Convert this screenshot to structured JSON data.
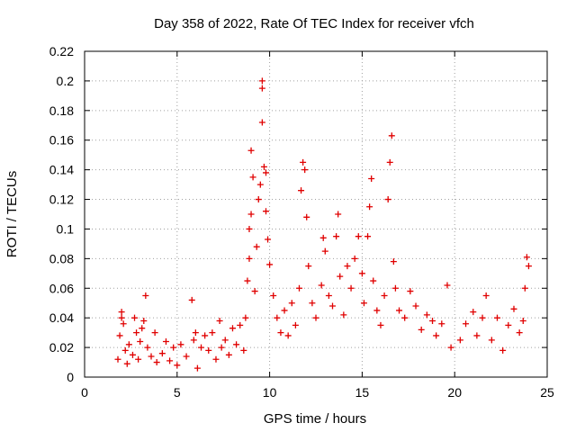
{
  "chart_data": {
    "type": "scatter",
    "title": "Day 358 of 2022, Rate Of TEC Index for receiver vfch",
    "xlabel": "GPS time / hours",
    "ylabel": "ROTI / TECUs",
    "xlim": [
      0,
      25
    ],
    "ylim": [
      0,
      0.22
    ],
    "xticks": [
      "0",
      "5",
      "10",
      "15",
      "20",
      "25"
    ],
    "yticks": [
      "0",
      "0.02",
      "0.04",
      "0.06",
      "0.08",
      "0.1",
      "0.12",
      "0.14",
      "0.16",
      "0.18",
      "0.2",
      "0.22"
    ],
    "grid": true,
    "marker": "plus",
    "color": "#e00000",
    "series": [
      {
        "points": [
          [
            1.8,
            0.012
          ],
          [
            1.9,
            0.028
          ],
          [
            2.0,
            0.044
          ],
          [
            2.0,
            0.04
          ],
          [
            2.1,
            0.036
          ],
          [
            2.2,
            0.018
          ],
          [
            2.3,
            0.009
          ],
          [
            2.4,
            0.022
          ],
          [
            2.6,
            0.015
          ],
          [
            2.7,
            0.04
          ],
          [
            2.8,
            0.03
          ],
          [
            2.9,
            0.012
          ],
          [
            3.0,
            0.024
          ],
          [
            3.1,
            0.033
          ],
          [
            3.2,
            0.038
          ],
          [
            3.3,
            0.055
          ],
          [
            3.4,
            0.02
          ],
          [
            3.6,
            0.014
          ],
          [
            3.8,
            0.03
          ],
          [
            3.9,
            0.01
          ],
          [
            4.2,
            0.016
          ],
          [
            4.4,
            0.024
          ],
          [
            4.6,
            0.011
          ],
          [
            4.8,
            0.02
          ],
          [
            5.0,
            0.008
          ],
          [
            5.2,
            0.022
          ],
          [
            5.5,
            0.014
          ],
          [
            5.8,
            0.052
          ],
          [
            5.9,
            0.025
          ],
          [
            6.0,
            0.03
          ],
          [
            6.1,
            0.006
          ],
          [
            6.3,
            0.02
          ],
          [
            6.5,
            0.028
          ],
          [
            6.7,
            0.018
          ],
          [
            6.9,
            0.03
          ],
          [
            7.1,
            0.012
          ],
          [
            7.3,
            0.038
          ],
          [
            7.4,
            0.02
          ],
          [
            7.6,
            0.025
          ],
          [
            7.8,
            0.015
          ],
          [
            8.0,
            0.033
          ],
          [
            8.2,
            0.022
          ],
          [
            8.4,
            0.035
          ],
          [
            8.6,
            0.018
          ],
          [
            8.7,
            0.04
          ],
          [
            8.8,
            0.065
          ],
          [
            8.9,
            0.08
          ],
          [
            8.9,
            0.1
          ],
          [
            9.0,
            0.11
          ],
          [
            9.0,
            0.153
          ],
          [
            9.1,
            0.135
          ],
          [
            9.2,
            0.058
          ],
          [
            9.3,
            0.088
          ],
          [
            9.4,
            0.12
          ],
          [
            9.5,
            0.13
          ],
          [
            9.6,
            0.172
          ],
          [
            9.6,
            0.2
          ],
          [
            9.6,
            0.195
          ],
          [
            9.7,
            0.142
          ],
          [
            9.8,
            0.138
          ],
          [
            9.8,
            0.112
          ],
          [
            9.9,
            0.093
          ],
          [
            10.0,
            0.076
          ],
          [
            10.2,
            0.055
          ],
          [
            10.4,
            0.04
          ],
          [
            10.6,
            0.03
          ],
          [
            10.8,
            0.045
          ],
          [
            11.0,
            0.028
          ],
          [
            11.2,
            0.05
          ],
          [
            11.4,
            0.035
          ],
          [
            11.6,
            0.06
          ],
          [
            11.7,
            0.126
          ],
          [
            11.8,
            0.145
          ],
          [
            11.9,
            0.14
          ],
          [
            12.0,
            0.108
          ],
          [
            12.1,
            0.075
          ],
          [
            12.3,
            0.05
          ],
          [
            12.5,
            0.04
          ],
          [
            12.8,
            0.062
          ],
          [
            12.9,
            0.094
          ],
          [
            13.0,
            0.085
          ],
          [
            13.2,
            0.055
          ],
          [
            13.4,
            0.048
          ],
          [
            13.6,
            0.095
          ],
          [
            13.7,
            0.11
          ],
          [
            13.8,
            0.068
          ],
          [
            14.0,
            0.042
          ],
          [
            14.2,
            0.075
          ],
          [
            14.4,
            0.06
          ],
          [
            14.6,
            0.08
          ],
          [
            14.8,
            0.095
          ],
          [
            15.0,
            0.07
          ],
          [
            15.1,
            0.05
          ],
          [
            15.3,
            0.095
          ],
          [
            15.4,
            0.115
          ],
          [
            15.5,
            0.134
          ],
          [
            15.6,
            0.065
          ],
          [
            15.8,
            0.045
          ],
          [
            16.0,
            0.035
          ],
          [
            16.2,
            0.055
          ],
          [
            16.4,
            0.12
          ],
          [
            16.5,
            0.145
          ],
          [
            16.6,
            0.163
          ],
          [
            16.7,
            0.078
          ],
          [
            16.8,
            0.06
          ],
          [
            17.0,
            0.045
          ],
          [
            17.3,
            0.04
          ],
          [
            17.6,
            0.058
          ],
          [
            17.9,
            0.048
          ],
          [
            18.2,
            0.032
          ],
          [
            18.5,
            0.042
          ],
          [
            18.8,
            0.038
          ],
          [
            19.0,
            0.028
          ],
          [
            19.3,
            0.036
          ],
          [
            19.6,
            0.062
          ],
          [
            19.8,
            0.02
          ],
          [
            20.3,
            0.025
          ],
          [
            20.6,
            0.036
          ],
          [
            21.0,
            0.044
          ],
          [
            21.2,
            0.028
          ],
          [
            21.5,
            0.04
          ],
          [
            21.7,
            0.055
          ],
          [
            22.0,
            0.025
          ],
          [
            22.3,
            0.04
          ],
          [
            22.6,
            0.018
          ],
          [
            22.9,
            0.035
          ],
          [
            23.2,
            0.046
          ],
          [
            23.5,
            0.03
          ],
          [
            23.7,
            0.038
          ],
          [
            23.8,
            0.06
          ],
          [
            23.9,
            0.081
          ],
          [
            24.0,
            0.075
          ]
        ]
      }
    ]
  }
}
